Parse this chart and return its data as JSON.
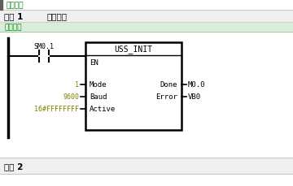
{
  "bg_color": "#f0f0f0",
  "white_bg": "#ffffff",
  "green_color": "#008000",
  "olive_color": "#808000",
  "black_color": "#000000",
  "gray_color": "#c8c8c8",
  "dark_border": "#404040",
  "header_top_text": "程序注释",
  "network1_label": "网络 1",
  "network1_title": "网络标题",
  "network1_comment": "网络注释",
  "network2_label": "网络 2",
  "contact_label": "SM0.1",
  "block_title": "USS_INIT",
  "block_en": "EN",
  "block_inputs": [
    "Mode",
    "Baud",
    "Active"
  ],
  "block_input_values": [
    "1",
    "9600",
    "16#FFFFFFFF"
  ],
  "block_outputs": [
    "Done",
    "Error"
  ],
  "block_output_values": [
    "M0.0",
    "VB0"
  ],
  "figsize": [
    3.6,
    2.3
  ],
  "dpi": 100
}
